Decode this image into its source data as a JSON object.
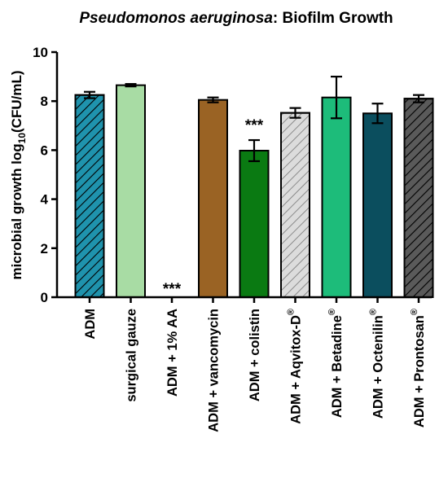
{
  "chart_data": {
    "type": "bar",
    "title_italic": "Pseudomonos aeruginosa",
    "title_rest": ": Biofilm Growth",
    "ylabel_pre": "microbial growth log",
    "ylabel_sub": "10",
    "ylabel_post": "(CFU/mL)",
    "xlabel": "",
    "ylim": [
      0,
      10
    ],
    "yticks": [
      "0",
      "2",
      "4",
      "6",
      "8",
      "10"
    ],
    "categories": [
      {
        "label": "ADM",
        "mark": "",
        "value": 8.25,
        "error": 0.13,
        "color": "#1f93ad",
        "hatch": "dark",
        "significance": ""
      },
      {
        "label": "surgical gauze",
        "mark": "",
        "value": 8.65,
        "error": 0.05,
        "color": "#a8dca4",
        "hatch": "",
        "significance": ""
      },
      {
        "label": "ADM + 1% AA",
        "mark": "",
        "value": 0,
        "error": 0,
        "color": "#ffffff",
        "hatch": "",
        "significance": "***"
      },
      {
        "label": "ADM + vancomycin",
        "mark": "",
        "value": 8.05,
        "error": 0.1,
        "color": "#9a6324",
        "hatch": "",
        "significance": ""
      },
      {
        "label": "ADM + colistin",
        "mark": "",
        "value": 5.98,
        "error": 0.43,
        "color": "#0a7a12",
        "hatch": "",
        "significance": "***"
      },
      {
        "label": "ADM + Aqvitox-D",
        "mark": "®",
        "value": 7.52,
        "error": 0.2,
        "color": "#dcdcdc",
        "hatch": "light",
        "significance": ""
      },
      {
        "label": "ADM + Betadine",
        "mark": "®",
        "value": 8.15,
        "error": 0.85,
        "color": "#1dbc7a",
        "hatch": "",
        "significance": ""
      },
      {
        "label": "ADM + Octenilin",
        "mark": "®",
        "value": 7.5,
        "error": 0.4,
        "color": "#0b4e5e",
        "hatch": "",
        "significance": ""
      },
      {
        "label": "ADM + Prontosan",
        "mark": "®",
        "value": 8.1,
        "error": 0.15,
        "color": "#5a5a5a",
        "hatch": "dark",
        "significance": ""
      }
    ],
    "grid": false,
    "legend": "none"
  }
}
